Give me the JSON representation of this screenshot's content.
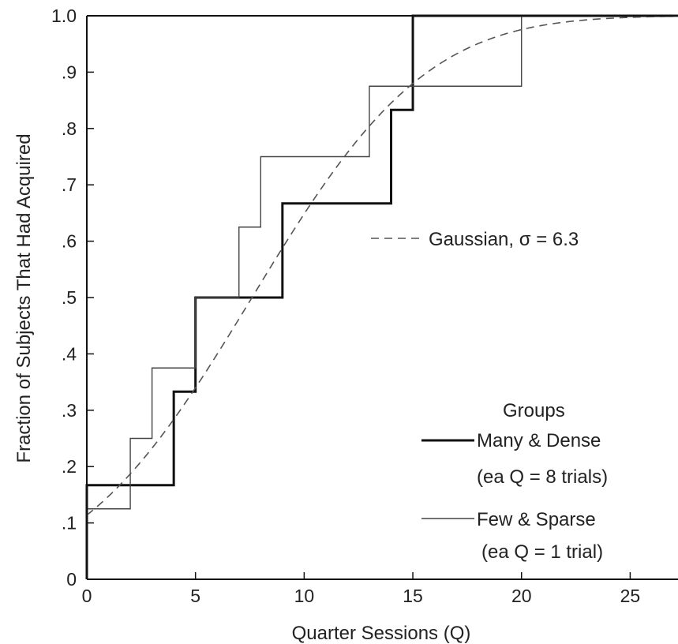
{
  "chart_data": {
    "type": "line",
    "xlabel": "Quarter Sessions (Q)",
    "ylabel": "Fraction of Subjects That Had Acquired",
    "xlim": [
      0,
      27.2
    ],
    "ylim": [
      0,
      1.0
    ],
    "x_ticks": [
      0,
      5,
      10,
      15,
      20,
      25
    ],
    "x_tick_labels": [
      "0",
      "5",
      "10",
      "15",
      "20",
      "25"
    ],
    "y_ticks": [
      0,
      0.1,
      0.2,
      0.3,
      0.4,
      0.5,
      0.6,
      0.7,
      0.8,
      0.9,
      1.0
    ],
    "y_tick_labels": [
      "0",
      ".1",
      ".2",
      ".3",
      ".4",
      ".5",
      ".6",
      ".7",
      ".8",
      ".9",
      "1.0"
    ],
    "legend_title": "Groups",
    "series": [
      {
        "name": "Many & Dense",
        "note": "(ea Q = 8 trials)",
        "style": "step-thick",
        "color": "#111111",
        "x": [
          0,
          4,
          5,
          9,
          14,
          15
        ],
        "y": [
          0.167,
          0.333,
          0.5,
          0.667,
          0.833,
          1.0
        ]
      },
      {
        "name": "Few & Sparse",
        "note": "(ea Q = 1 trial)",
        "style": "step-thin",
        "color": "#444444",
        "x": [
          0,
          2,
          3,
          5,
          7,
          8,
          13,
          20
        ],
        "y": [
          0.125,
          0.25,
          0.375,
          0.5,
          0.625,
          0.75,
          0.875,
          1.0
        ]
      },
      {
        "name": "Gaussian, σ = 6.3",
        "style": "dashed",
        "color": "#555555",
        "mean": 7.6,
        "sigma": 6.3
      }
    ]
  }
}
